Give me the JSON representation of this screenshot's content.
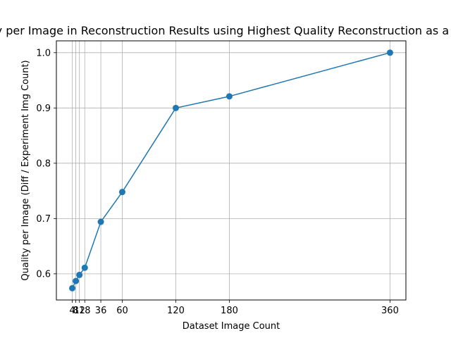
{
  "chart_data": {
    "type": "line",
    "title": "Quality per Image in Reconstruction Results using Highest Quality Reconstruction as a Baseline",
    "xlabel": "Dataset Image Count",
    "ylabel": "Quality per Image (Diff / Experiment Img Count)",
    "x": [
      4,
      8,
      12,
      18,
      36,
      60,
      120,
      180,
      360
    ],
    "xticks": [
      4,
      8,
      12,
      18,
      36,
      60,
      120,
      180,
      360
    ],
    "yticks": [
      0.6,
      0.7,
      0.8,
      0.9,
      1.0
    ],
    "ytick_labels": [
      "0.6",
      "0.7",
      "0.8",
      "0.9",
      "1.0"
    ],
    "xlim": [
      -13.8,
      377.8
    ],
    "ylim": [
      0.5527,
      1.0214
    ],
    "grid": true,
    "series": [
      {
        "values": [
          0.574,
          0.587,
          0.598,
          0.611,
          0.694,
          0.748,
          0.9,
          0.921,
          1.0
        ],
        "color": "#1f77b4",
        "marker": "circle"
      }
    ]
  }
}
